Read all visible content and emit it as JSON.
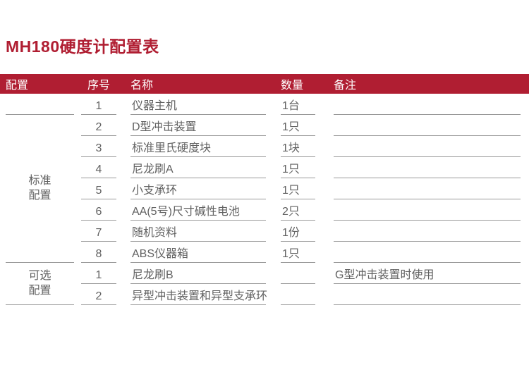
{
  "page_title": "MH180硬度计配置表",
  "colors": {
    "accent_red": "#b01e32",
    "text_gray": "#616161",
    "line_gray": "#999999"
  },
  "table": {
    "columns": {
      "config": "配置",
      "serial": "序号",
      "name": "名称",
      "quantity": "数量",
      "remark": "备注"
    },
    "standard": {
      "label": "标准配置",
      "rows": [
        {
          "serial": "1",
          "name": "仪器主机",
          "quantity": "1台",
          "remark": ""
        },
        {
          "serial": "2",
          "name": "D型冲击装置",
          "quantity": "1只",
          "remark": ""
        },
        {
          "serial": "3",
          "name": "标准里氏硬度块",
          "quantity": "1块",
          "remark": ""
        },
        {
          "serial": "4",
          "name": "尼龙刷A",
          "quantity": "1只",
          "remark": ""
        },
        {
          "serial": "5",
          "name": "小支承环",
          "quantity": "1只",
          "remark": ""
        },
        {
          "serial": "6",
          "name": "AA(5号)尺寸碱性电池",
          "quantity": "2只",
          "remark": ""
        },
        {
          "serial": "7",
          "name": "随机资料",
          "quantity": "1份",
          "remark": ""
        },
        {
          "serial": "8",
          "name": "ABS仪器箱",
          "quantity": "1只",
          "remark": ""
        }
      ]
    },
    "optional": {
      "label": "可选配置",
      "rows": [
        {
          "serial": "1",
          "name": "尼龙刷B",
          "quantity": "",
          "remark": "G型冲击装置时使用"
        },
        {
          "serial": "2",
          "name": "异型冲击装置和异型支承环",
          "quantity": "",
          "remark": ""
        }
      ]
    }
  }
}
